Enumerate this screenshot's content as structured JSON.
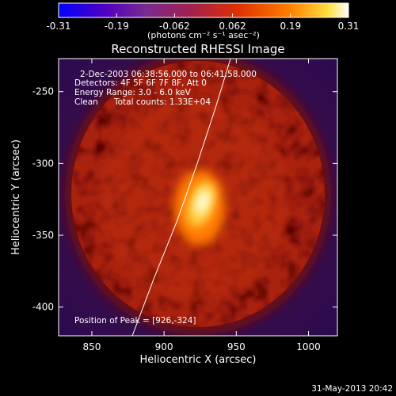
{
  "chart_data": {
    "type": "heatmap",
    "title": "Reconstructed RHESSI Image",
    "xlabel": "Heliocentric X (arcsec)",
    "ylabel": "Heliocentric Y (arcsec)",
    "xlim": [
      827,
      1020
    ],
    "ylim": [
      -420,
      -227
    ],
    "x_ticks": [
      850,
      900,
      950,
      1000
    ],
    "y_ticks": [
      -250,
      -300,
      -350,
      -400
    ],
    "colorbar": {
      "label": "(photons cm⁻² s⁻¹ asec⁻²)",
      "min": -0.31,
      "max": 0.31,
      "ticks": [
        "-0.31",
        "-0.19",
        "-0.062",
        "0.062",
        "0.19",
        "0.31"
      ],
      "colormap": [
        "#0000ff",
        "#5000c0",
        "#7a2a90",
        "#a02050",
        "#e03000",
        "#ff8000",
        "#ffe040",
        "#ffffff"
      ]
    },
    "annotations": {
      "time_range": "2-Dec-2003 06:38:56.000 to 06:41:58.000",
      "detectors": "Detectors: 4F 5F 6F 7F 8F, Att 0",
      "energy": "Energy Range: 3.0 - 6.0 keV",
      "clean": "Clean",
      "counts": "Total counts: 1.33E+04",
      "peak": "Position of Peak = [926,-324]"
    },
    "peak": {
      "x": 926,
      "y": -324,
      "value": 0.31
    },
    "limb_curve": [
      [
        878,
        -420
      ],
      [
        893,
        -380
      ],
      [
        909,
        -340
      ],
      [
        923,
        -300
      ],
      [
        936,
        -260
      ],
      [
        946,
        -227
      ]
    ],
    "grid": false
  },
  "footer": {
    "date": "31-May-2013 20:42"
  }
}
